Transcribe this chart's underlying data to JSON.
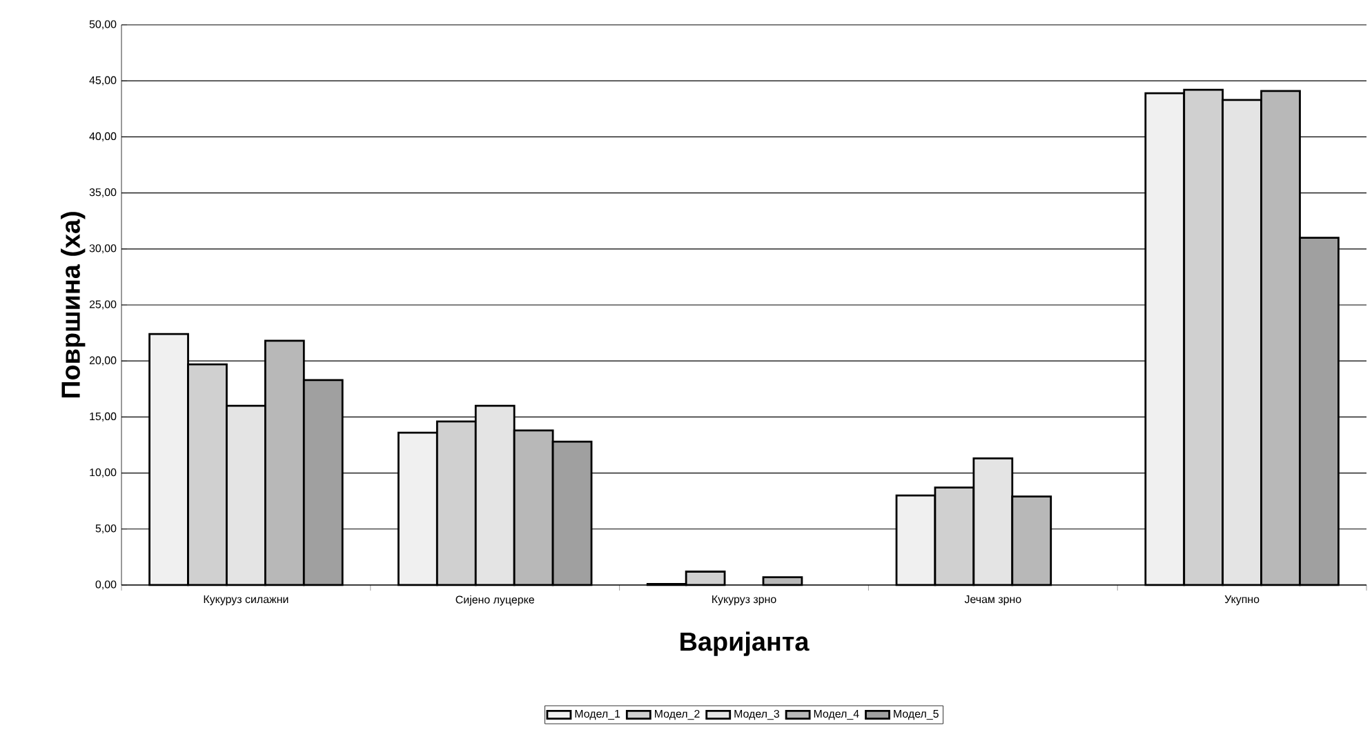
{
  "chart_data": {
    "type": "bar",
    "xlabel": "Варијанта",
    "ylabel": "Површина (ха)",
    "categories": [
      "Кукуруз силажни",
      "Сијено луцерке",
      "Кукуруз зрно",
      "Јечам зрно",
      "Укупно"
    ],
    "series": [
      {
        "name": "Модел_1",
        "color": "#f0f0f0",
        "values": [
          22.4,
          13.6,
          0.1,
          8.0,
          43.9
        ]
      },
      {
        "name": "Модел_2",
        "color": "#d0d0d0",
        "values": [
          19.7,
          14.6,
          1.2,
          8.7,
          44.2
        ]
      },
      {
        "name": "Модел_3",
        "color": "#e4e4e4",
        "values": [
          16.0,
          16.0,
          null,
          11.3,
          43.3
        ]
      },
      {
        "name": "Модел_4",
        "color": "#b8b8b8",
        "values": [
          21.8,
          13.8,
          0.7,
          7.9,
          44.1
        ]
      },
      {
        "name": "Модел_5",
        "color": "#a0a0a0",
        "values": [
          18.3,
          12.8,
          null,
          null,
          31.0
        ]
      }
    ],
    "ylim": [
      0,
      50
    ],
    "yticks": [
      {
        "value": 0,
        "label": "0,00"
      },
      {
        "value": 5,
        "label": "5,00"
      },
      {
        "value": 10,
        "label": "10,00"
      },
      {
        "value": 15,
        "label": "15,00"
      },
      {
        "value": 20,
        "label": "20,00"
      },
      {
        "value": 25,
        "label": "25,00"
      },
      {
        "value": 30,
        "label": "30,00"
      },
      {
        "value": 35,
        "label": "35,00"
      },
      {
        "value": 40,
        "label": "40,00"
      },
      {
        "value": 45,
        "label": "45,00"
      },
      {
        "value": 50,
        "label": "50,00"
      }
    ],
    "grid": "y",
    "legend": "bottom"
  }
}
